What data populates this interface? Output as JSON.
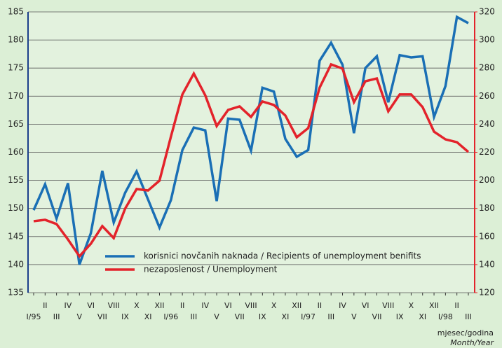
{
  "chart_data": {
    "type": "line",
    "categories": [
      "I/95",
      "II",
      "III",
      "IV",
      "V",
      "VI",
      "VII",
      "VIII",
      "IX",
      "X",
      "XI",
      "XII",
      "I/96",
      "II",
      "III",
      "IV",
      "V",
      "VI",
      "VII",
      "VIII",
      "IX",
      "X",
      "XI",
      "XII",
      "I/97",
      "II",
      "III",
      "IV",
      "V",
      "VI",
      "VII",
      "VIII",
      "IX",
      "X",
      "XI",
      "XII",
      "I/98",
      "II",
      "III"
    ],
    "series": [
      {
        "name": "korisnici novčanih naknada / Recipients of unemployment benifits",
        "color": "#1a6fb5",
        "values": [
          149.7,
          154.3,
          148.2,
          154.5,
          140,
          145.6,
          156.7,
          147.5,
          152.8,
          156.6,
          151.6,
          146.6,
          151.5,
          160.4,
          164.4,
          163.9,
          151.3,
          166.0,
          165.8,
          160.3,
          171.5,
          170.8,
          162.4,
          159.2,
          160.4,
          176.3,
          179.5,
          175.6,
          163.4,
          175,
          177.1,
          168.9,
          177.3,
          176.9,
          177.1,
          166.3,
          171.8,
          184.1,
          183.0
        ]
      },
      {
        "name": "nezaposlenost / Unemployment",
        "color": "#e3232b",
        "axis": "y2",
        "values": [
          170.9,
          171.9,
          168.9,
          157.9,
          145.9,
          154.9,
          167.4,
          158.9,
          179.9,
          193.8,
          192.8,
          199.8,
          231.2,
          261.2,
          276.1,
          260.6,
          238.7,
          250.2,
          252.7,
          245.2,
          256.2,
          253.7,
          246.2,
          230.7,
          237.2,
          266.1,
          282.6,
          279.6,
          255.7,
          270.6,
          272.6,
          249.2,
          261.2,
          261.2,
          252.2,
          234.7,
          229.2,
          227.2,
          220.2
        ]
      }
    ],
    "ylim": [
      135,
      185
    ],
    "yticks": [
      135,
      140,
      145,
      150,
      155,
      160,
      165,
      170,
      175,
      180,
      185
    ],
    "y2lim": [
      120,
      320
    ],
    "y2ticks": [
      120,
      140,
      160,
      180,
      200,
      220,
      240,
      260,
      280,
      300,
      320
    ],
    "grid": true,
    "xlabel": "mjesec/godina",
    "xlabel_en": "Month/Year"
  }
}
